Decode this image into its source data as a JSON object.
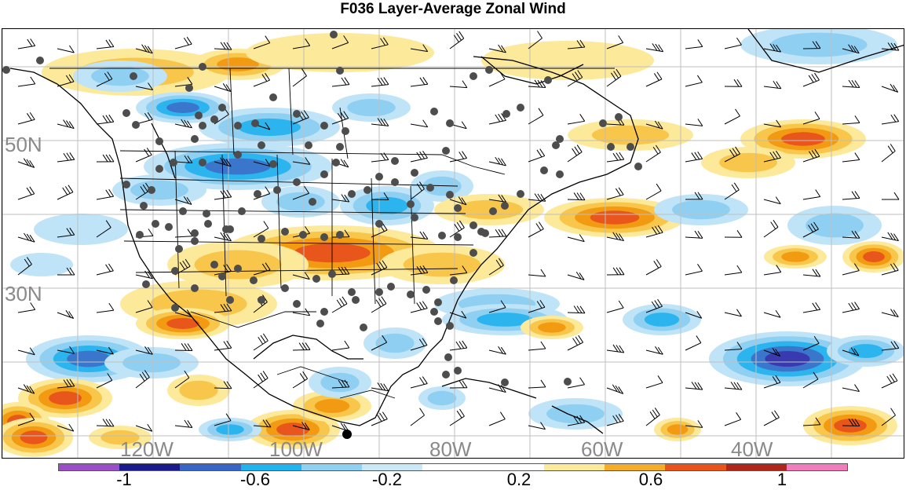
{
  "title": "F036 Layer-Average Zonal Wind",
  "map": {
    "lat_labels": [
      "50N",
      "30N"
    ],
    "lon_labels": [
      "120W",
      "100W",
      "80W",
      "60W",
      "40W"
    ],
    "positive_color_ramp": [
      "#fde99a",
      "#f7c64a",
      "#f29a12",
      "#e8561c",
      "#d12a1f"
    ],
    "negative_color_ramp": [
      "#bfe3f7",
      "#8fd0f2",
      "#2cb4ee",
      "#3a77cc",
      "#3a3ab0"
    ],
    "observation_marker_color": "#4d4d4d",
    "highlight_marker_color": "#000000"
  },
  "colorbar": {
    "segments": [
      "#9a4fc6",
      "#1a1a8c",
      "#3766c7",
      "#20b3ef",
      "#8fd1f2",
      "#cbe8f8",
      "#ffffff",
      "#ffffff",
      "#fde99a",
      "#f4ad2a",
      "#e8541c",
      "#b0261b",
      "#f27dbd"
    ],
    "labels": [
      "-1",
      "-0.6",
      "-0.2",
      "0.2",
      "0.6",
      "1"
    ]
  }
}
